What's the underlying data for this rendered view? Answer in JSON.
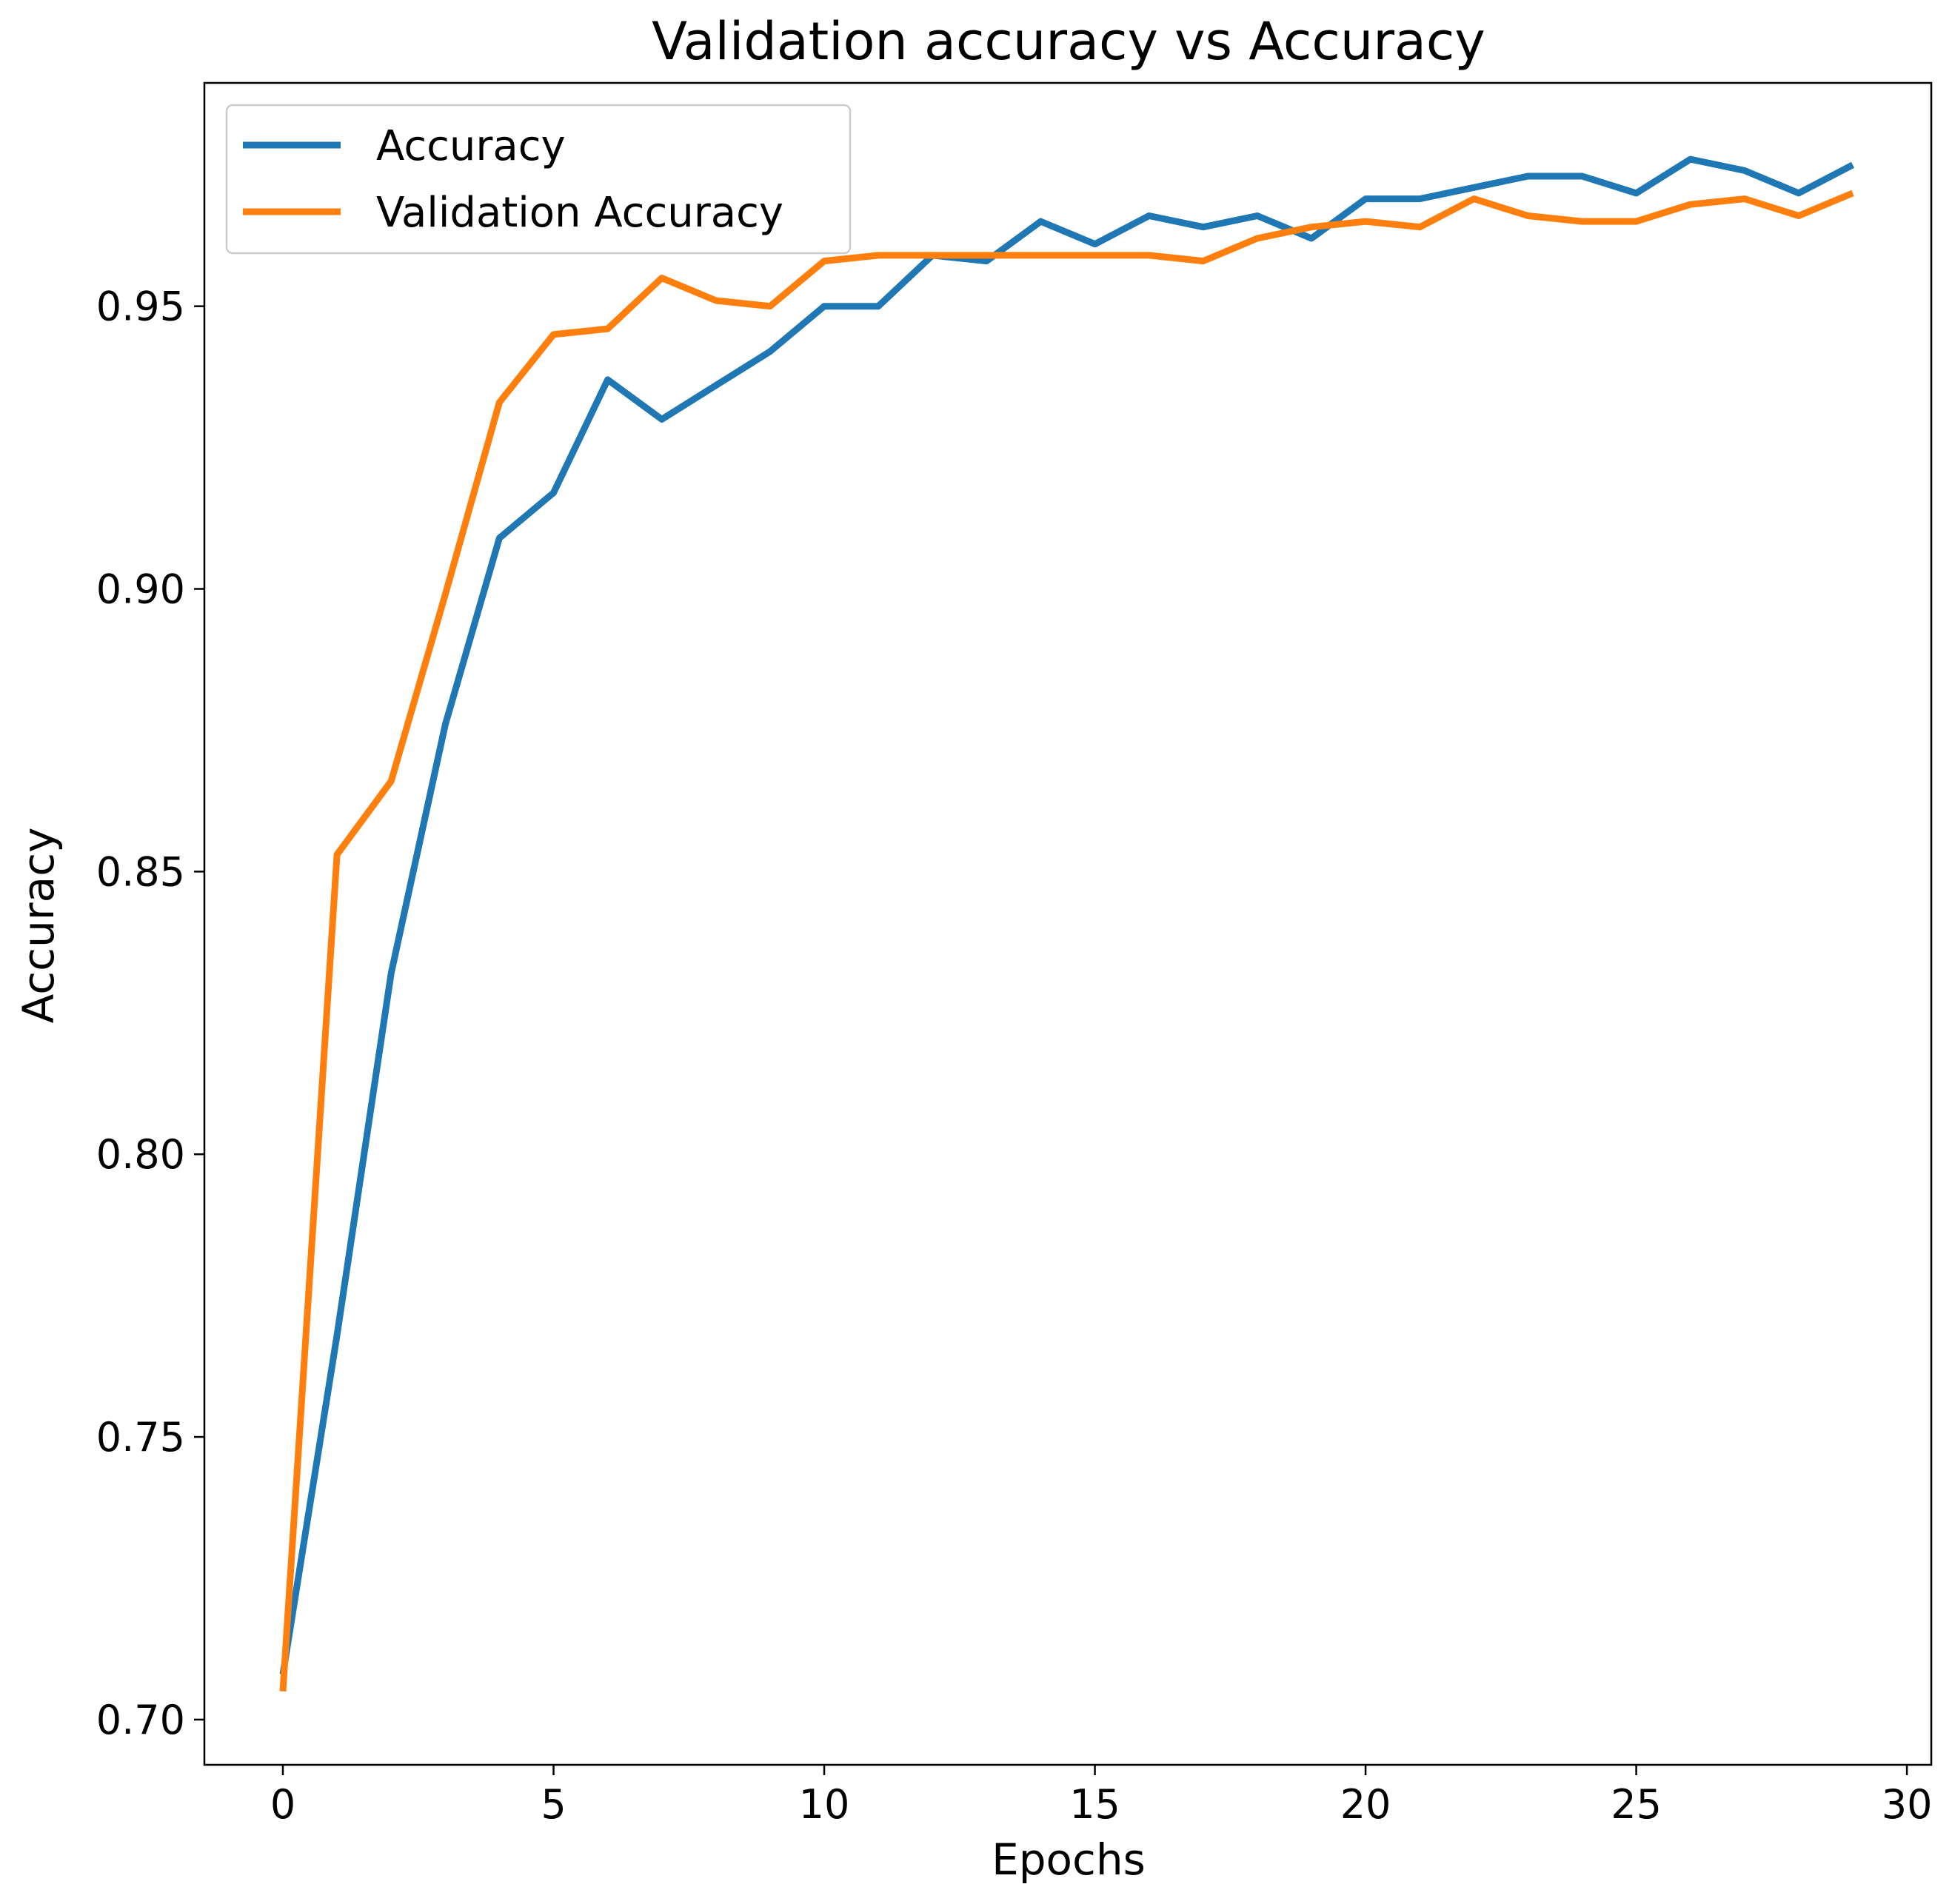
{
  "chart_data": {
    "type": "line",
    "title": "Validation accuracy vs Accuracy",
    "xlabel": "Epochs",
    "ylabel": "Accuracy",
    "xlim": [
      -1.45,
      30.45
    ],
    "ylim": [
      0.692,
      0.9895
    ],
    "xticks": [
      0,
      5,
      10,
      15,
      20,
      25,
      30
    ],
    "yticks": [
      0.7,
      0.75,
      0.8,
      0.85,
      0.9,
      0.95
    ],
    "ytick_labels": [
      "0.70",
      "0.75",
      "0.80",
      "0.85",
      "0.90",
      "0.95"
    ],
    "xtick_labels": [
      "0",
      "5",
      "10",
      "15",
      "20",
      "25",
      "30"
    ],
    "legend_position": "top-left",
    "grid": false,
    "x": [
      0,
      1,
      2,
      3,
      4,
      5,
      6,
      7,
      8,
      9,
      10,
      11,
      12,
      13,
      14,
      15,
      16,
      17,
      18,
      19,
      20,
      21,
      22,
      23,
      24,
      25,
      26,
      27,
      28,
      29
    ],
    "series": [
      {
        "name": "Accuracy",
        "color": "#1f77b4",
        "values": [
          0.708,
          0.768,
          0.832,
          0.876,
          0.909,
          0.917,
          0.937,
          0.93,
          0.936,
          0.942,
          0.95,
          0.95,
          0.959,
          0.958,
          0.965,
          0.961,
          0.966,
          0.964,
          0.966,
          0.962,
          0.969,
          0.969,
          0.971,
          0.973,
          0.973,
          0.97,
          0.976,
          0.974,
          0.97,
          0.975
        ]
      },
      {
        "name": "Validation Accuracy",
        "color": "#ff7f0e",
        "values": [
          0.705,
          0.853,
          0.866,
          0.899,
          0.933,
          0.945,
          0.946,
          0.955,
          0.951,
          0.95,
          0.958,
          0.959,
          0.959,
          0.959,
          0.959,
          0.959,
          0.959,
          0.958,
          0.962,
          0.964,
          0.965,
          0.964,
          0.969,
          0.966,
          0.965,
          0.965,
          0.968,
          0.969,
          0.966,
          0.97
        ]
      }
    ]
  }
}
